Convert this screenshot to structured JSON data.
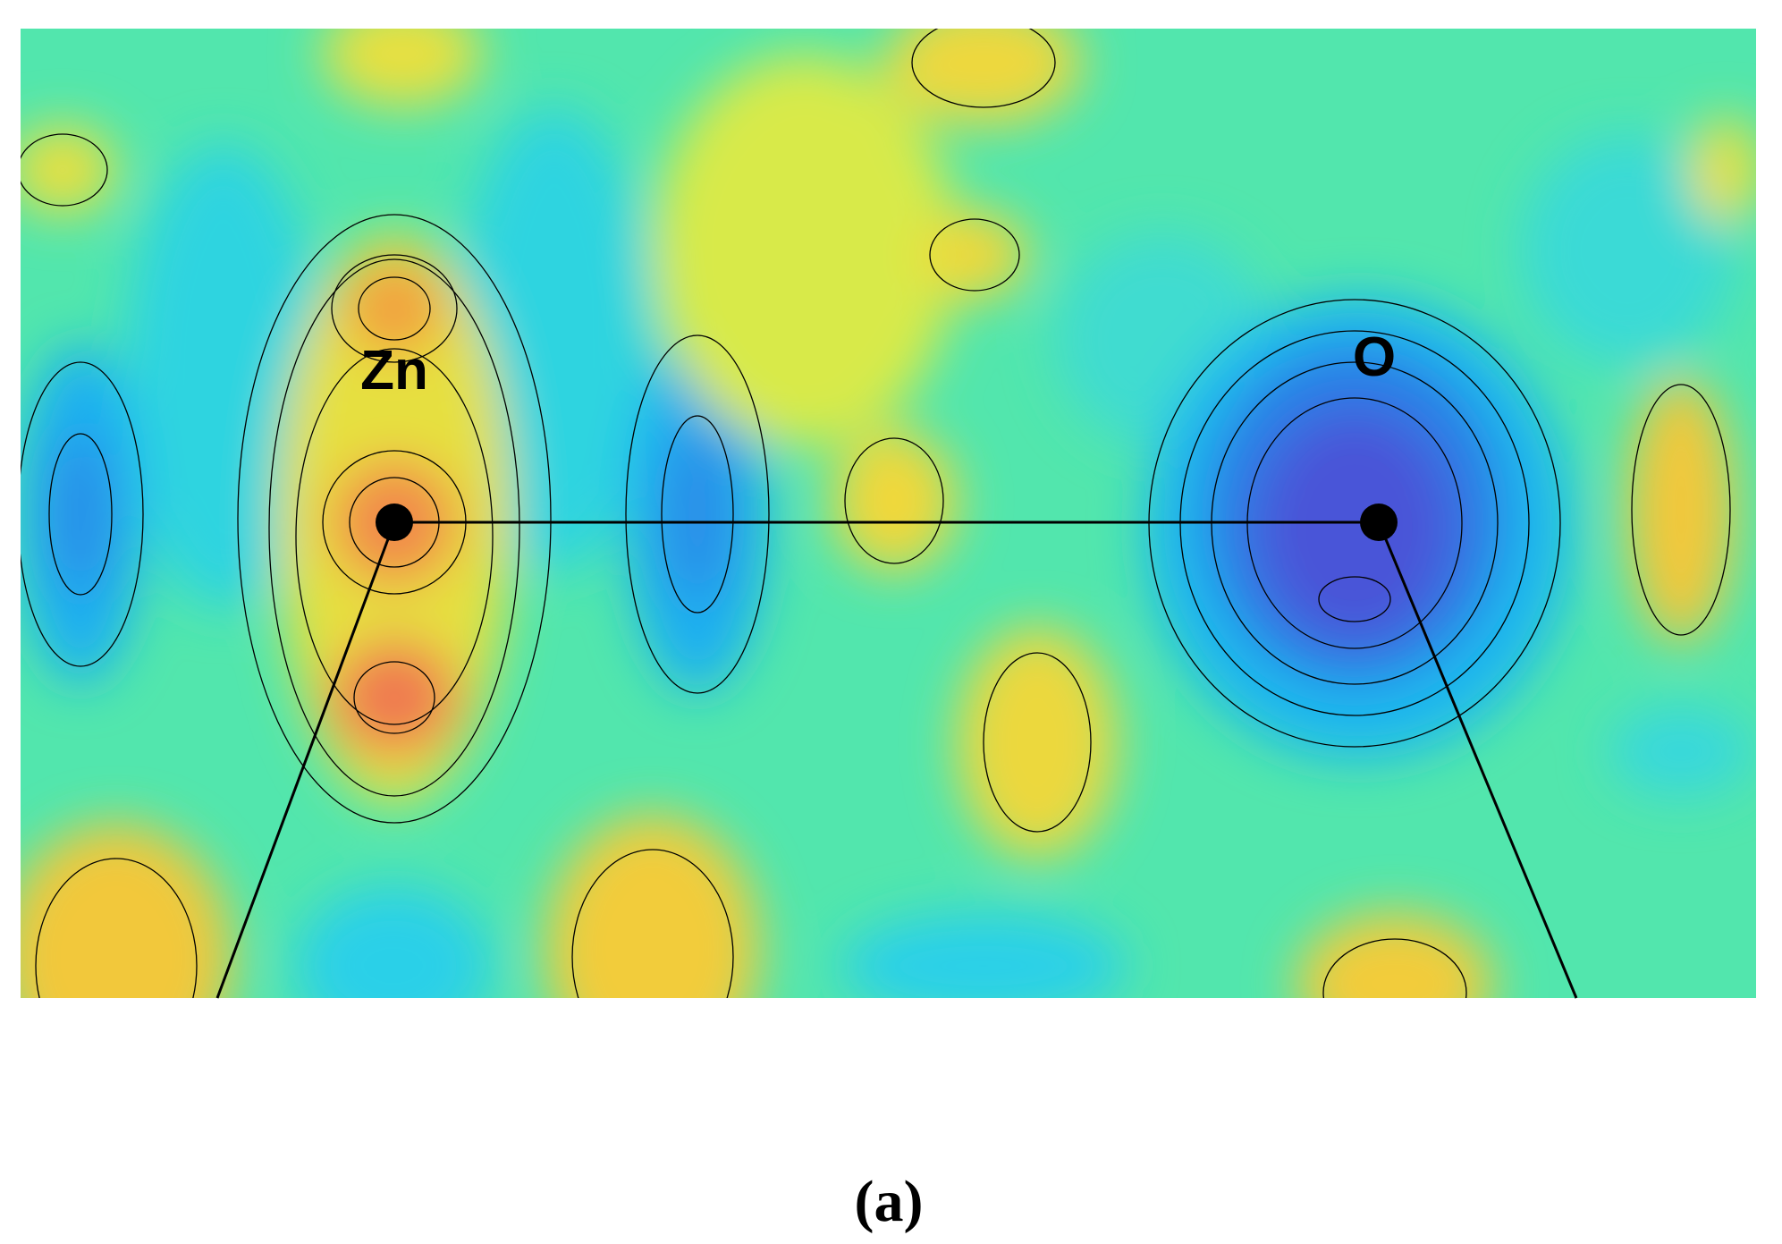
{
  "figure": {
    "atoms": [
      {
        "label": "Zn"
      },
      {
        "label": "O"
      }
    ],
    "caption": "(a)"
  }
}
